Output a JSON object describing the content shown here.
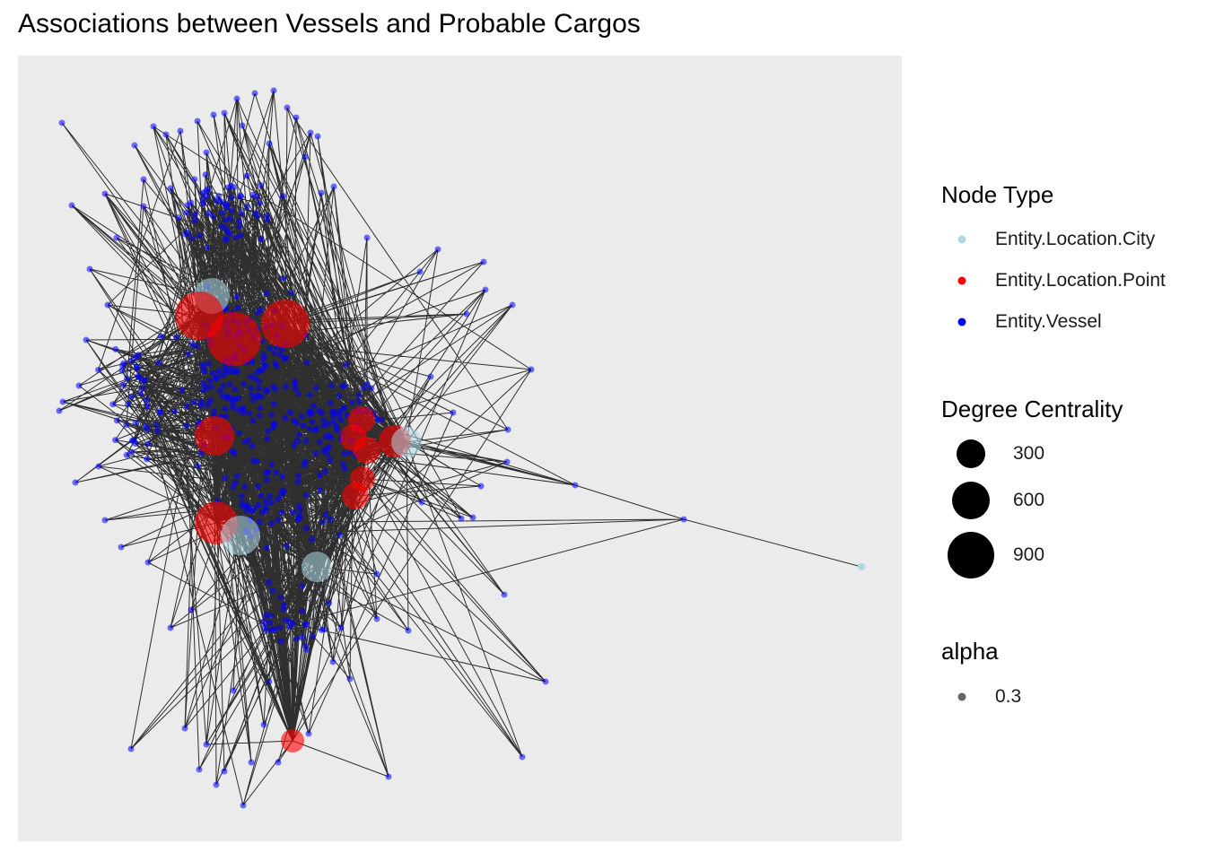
{
  "title": "Associations between Vessels and Probable Cargos",
  "colors": {
    "panel": "#ebebeb",
    "edge": "#000000",
    "Entity.Location.City": "#add8e6",
    "Entity.Location.Point": "#ff0000",
    "Entity.Vessel": "#0000ff"
  },
  "legend": {
    "node_type": {
      "title": "Node Type",
      "items": [
        "Entity.Location.City",
        "Entity.Location.Point",
        "Entity.Vessel"
      ]
    },
    "degree_centrality": {
      "title": "Degree Centrality",
      "items": [
        "300",
        "600",
        "900"
      ]
    },
    "alpha": {
      "title": "alpha",
      "items": [
        "0.3"
      ]
    }
  },
  "chart_data": {
    "type": "network",
    "title": "Associations between Vessels and Probable Cargos",
    "node_types": [
      "Entity.Location.City",
      "Entity.Location.Point",
      "Entity.Vessel"
    ],
    "degree_centrality_breaks": [
      300,
      600,
      900
    ],
    "alpha": 0.3,
    "legend_position": "right"
  }
}
